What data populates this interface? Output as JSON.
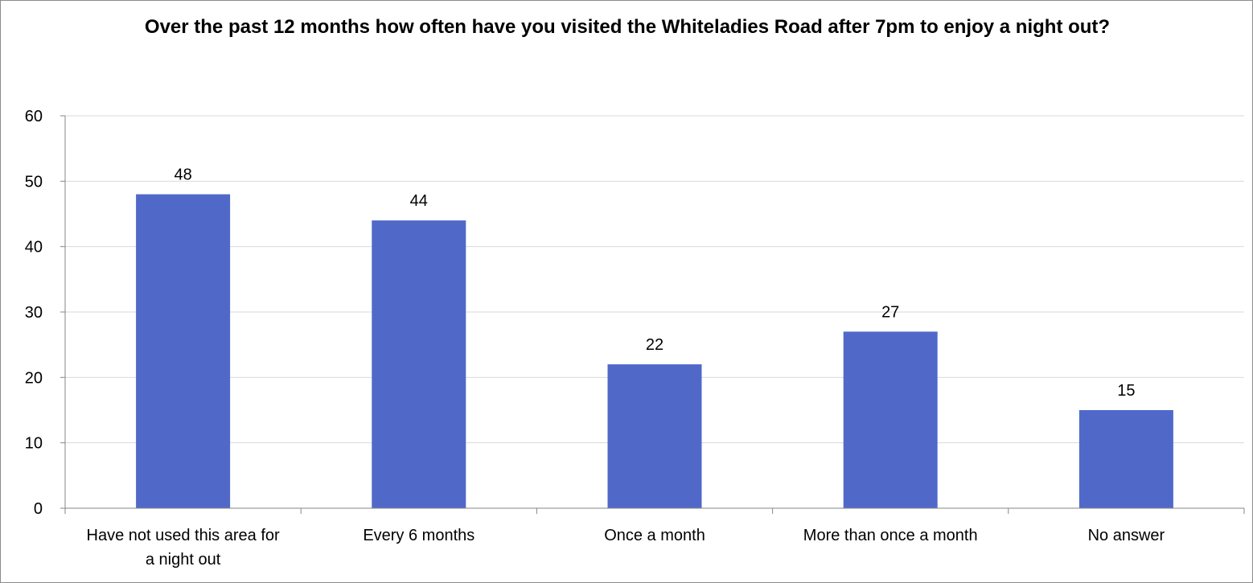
{
  "chart_data": {
    "type": "bar",
    "title": "Over the past 12 months how often have you visited the Whiteladies Road after 7pm to enjoy a night out?",
    "categories": [
      [
        "Have not used this area for",
        "a night out"
      ],
      [
        "Every 6 months"
      ],
      [
        "Once a month"
      ],
      [
        "More than once a month"
      ],
      [
        "No answer"
      ]
    ],
    "values": [
      48,
      44,
      22,
      27,
      15
    ],
    "ylim": [
      0,
      60
    ],
    "yticks": [
      0,
      10,
      20,
      30,
      40,
      50,
      60
    ],
    "grid": true,
    "legend": "none",
    "colors": {
      "bar": "#5069C9",
      "grid": "#d9d9d9",
      "axis": "#868686"
    }
  }
}
